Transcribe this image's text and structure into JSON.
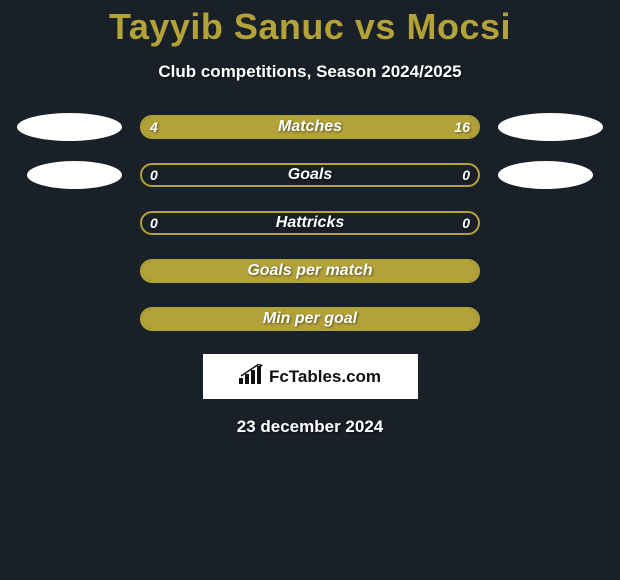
{
  "title": "Tayyib Sanuc vs Mocsi",
  "subtitle": "Club competitions, Season 2024/2025",
  "accent_color": "#b3a239",
  "background_color": "#1a2028",
  "text_color": "#ffffff",
  "stats": [
    {
      "label": "Matches",
      "left_value": "4",
      "right_value": "16",
      "left_pct": 20,
      "right_pct": 80,
      "show_ellipses": true,
      "ellipse_indent": false,
      "full_fill": false
    },
    {
      "label": "Goals",
      "left_value": "0",
      "right_value": "0",
      "left_pct": 0,
      "right_pct": 0,
      "show_ellipses": true,
      "ellipse_indent": true,
      "full_fill": false
    },
    {
      "label": "Hattricks",
      "left_value": "0",
      "right_value": "0",
      "left_pct": 0,
      "right_pct": 0,
      "show_ellipses": false,
      "ellipse_indent": false,
      "full_fill": false
    },
    {
      "label": "Goals per match",
      "left_value": "",
      "right_value": "",
      "left_pct": 0,
      "right_pct": 0,
      "show_ellipses": false,
      "ellipse_indent": false,
      "full_fill": true
    },
    {
      "label": "Min per goal",
      "left_value": "",
      "right_value": "",
      "left_pct": 0,
      "right_pct": 0,
      "show_ellipses": false,
      "ellipse_indent": false,
      "full_fill": true
    }
  ],
  "logo_text": "FcTables.com",
  "date": "23 december 2024"
}
